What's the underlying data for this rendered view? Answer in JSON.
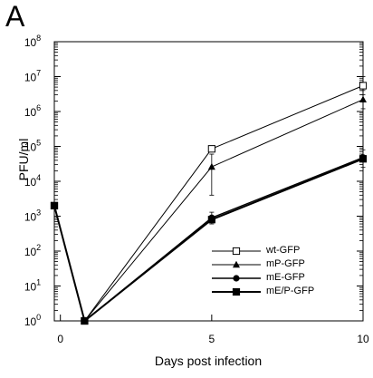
{
  "panel_letter": "A",
  "chart_data": {
    "type": "line",
    "xlabel": "Days post infection",
    "ylabel": "PFU/ml",
    "xlim": [
      -0.2,
      10
    ],
    "ylim": [
      1,
      100000000
    ],
    "log_y": true,
    "x_ticks": [
      0,
      5,
      10
    ],
    "y_ticks": [
      {
        "value": 1,
        "base": "10",
        "exp": "0"
      },
      {
        "value": 10,
        "base": "10",
        "exp": "1"
      },
      {
        "value": 100,
        "base": "10",
        "exp": "2"
      },
      {
        "value": 1000,
        "base": "10",
        "exp": "3"
      },
      {
        "value": 10000,
        "base": "10",
        "exp": "4"
      },
      {
        "value": 100000,
        "base": "10",
        "exp": "5"
      },
      {
        "value": 1000000,
        "base": "10",
        "exp": "6"
      },
      {
        "value": 10000000,
        "base": "10",
        "exp": "7"
      },
      {
        "value": 100000000,
        "base": "10",
        "exp": "8"
      }
    ],
    "grid": false,
    "legend_position": "bottom-right",
    "series": [
      {
        "name": "wt-GFP",
        "marker": "open-square",
        "stroke_width": 1,
        "x": [
          -0.2,
          0.8,
          5,
          10
        ],
        "y": [
          2000,
          1,
          85000,
          5500000
        ],
        "err_high": [
          null,
          null,
          95000,
          10000000
        ],
        "err_low": [
          null,
          null,
          75000,
          3000000
        ]
      },
      {
        "name": "mP-GFP",
        "marker": "filled-triangle",
        "stroke_width": 1,
        "x": [
          -0.2,
          0.8,
          5,
          10
        ],
        "y": [
          2000,
          1,
          26000,
          2200000
        ],
        "err_high": [
          null,
          null,
          60000,
          4000000
        ],
        "err_low": [
          null,
          null,
          4000,
          1200000
        ]
      },
      {
        "name": "mE-GFP",
        "marker": "filled-circle",
        "stroke_width": 1.4,
        "x": [
          -0.2,
          0.8,
          5,
          10
        ],
        "y": [
          2000,
          1,
          900,
          48000
        ],
        "err_high": [
          null,
          null,
          1300,
          80000
        ],
        "err_low": [
          null,
          null,
          600,
          25000
        ]
      },
      {
        "name": "mE/P-GFP",
        "marker": "filled-square",
        "stroke_width": 2,
        "x": [
          -0.2,
          0.8,
          5,
          10
        ],
        "y": [
          2000,
          1,
          800,
          44000
        ],
        "err_high": [
          null,
          null,
          null,
          null
        ],
        "err_low": [
          null,
          null,
          null,
          null
        ]
      }
    ]
  }
}
